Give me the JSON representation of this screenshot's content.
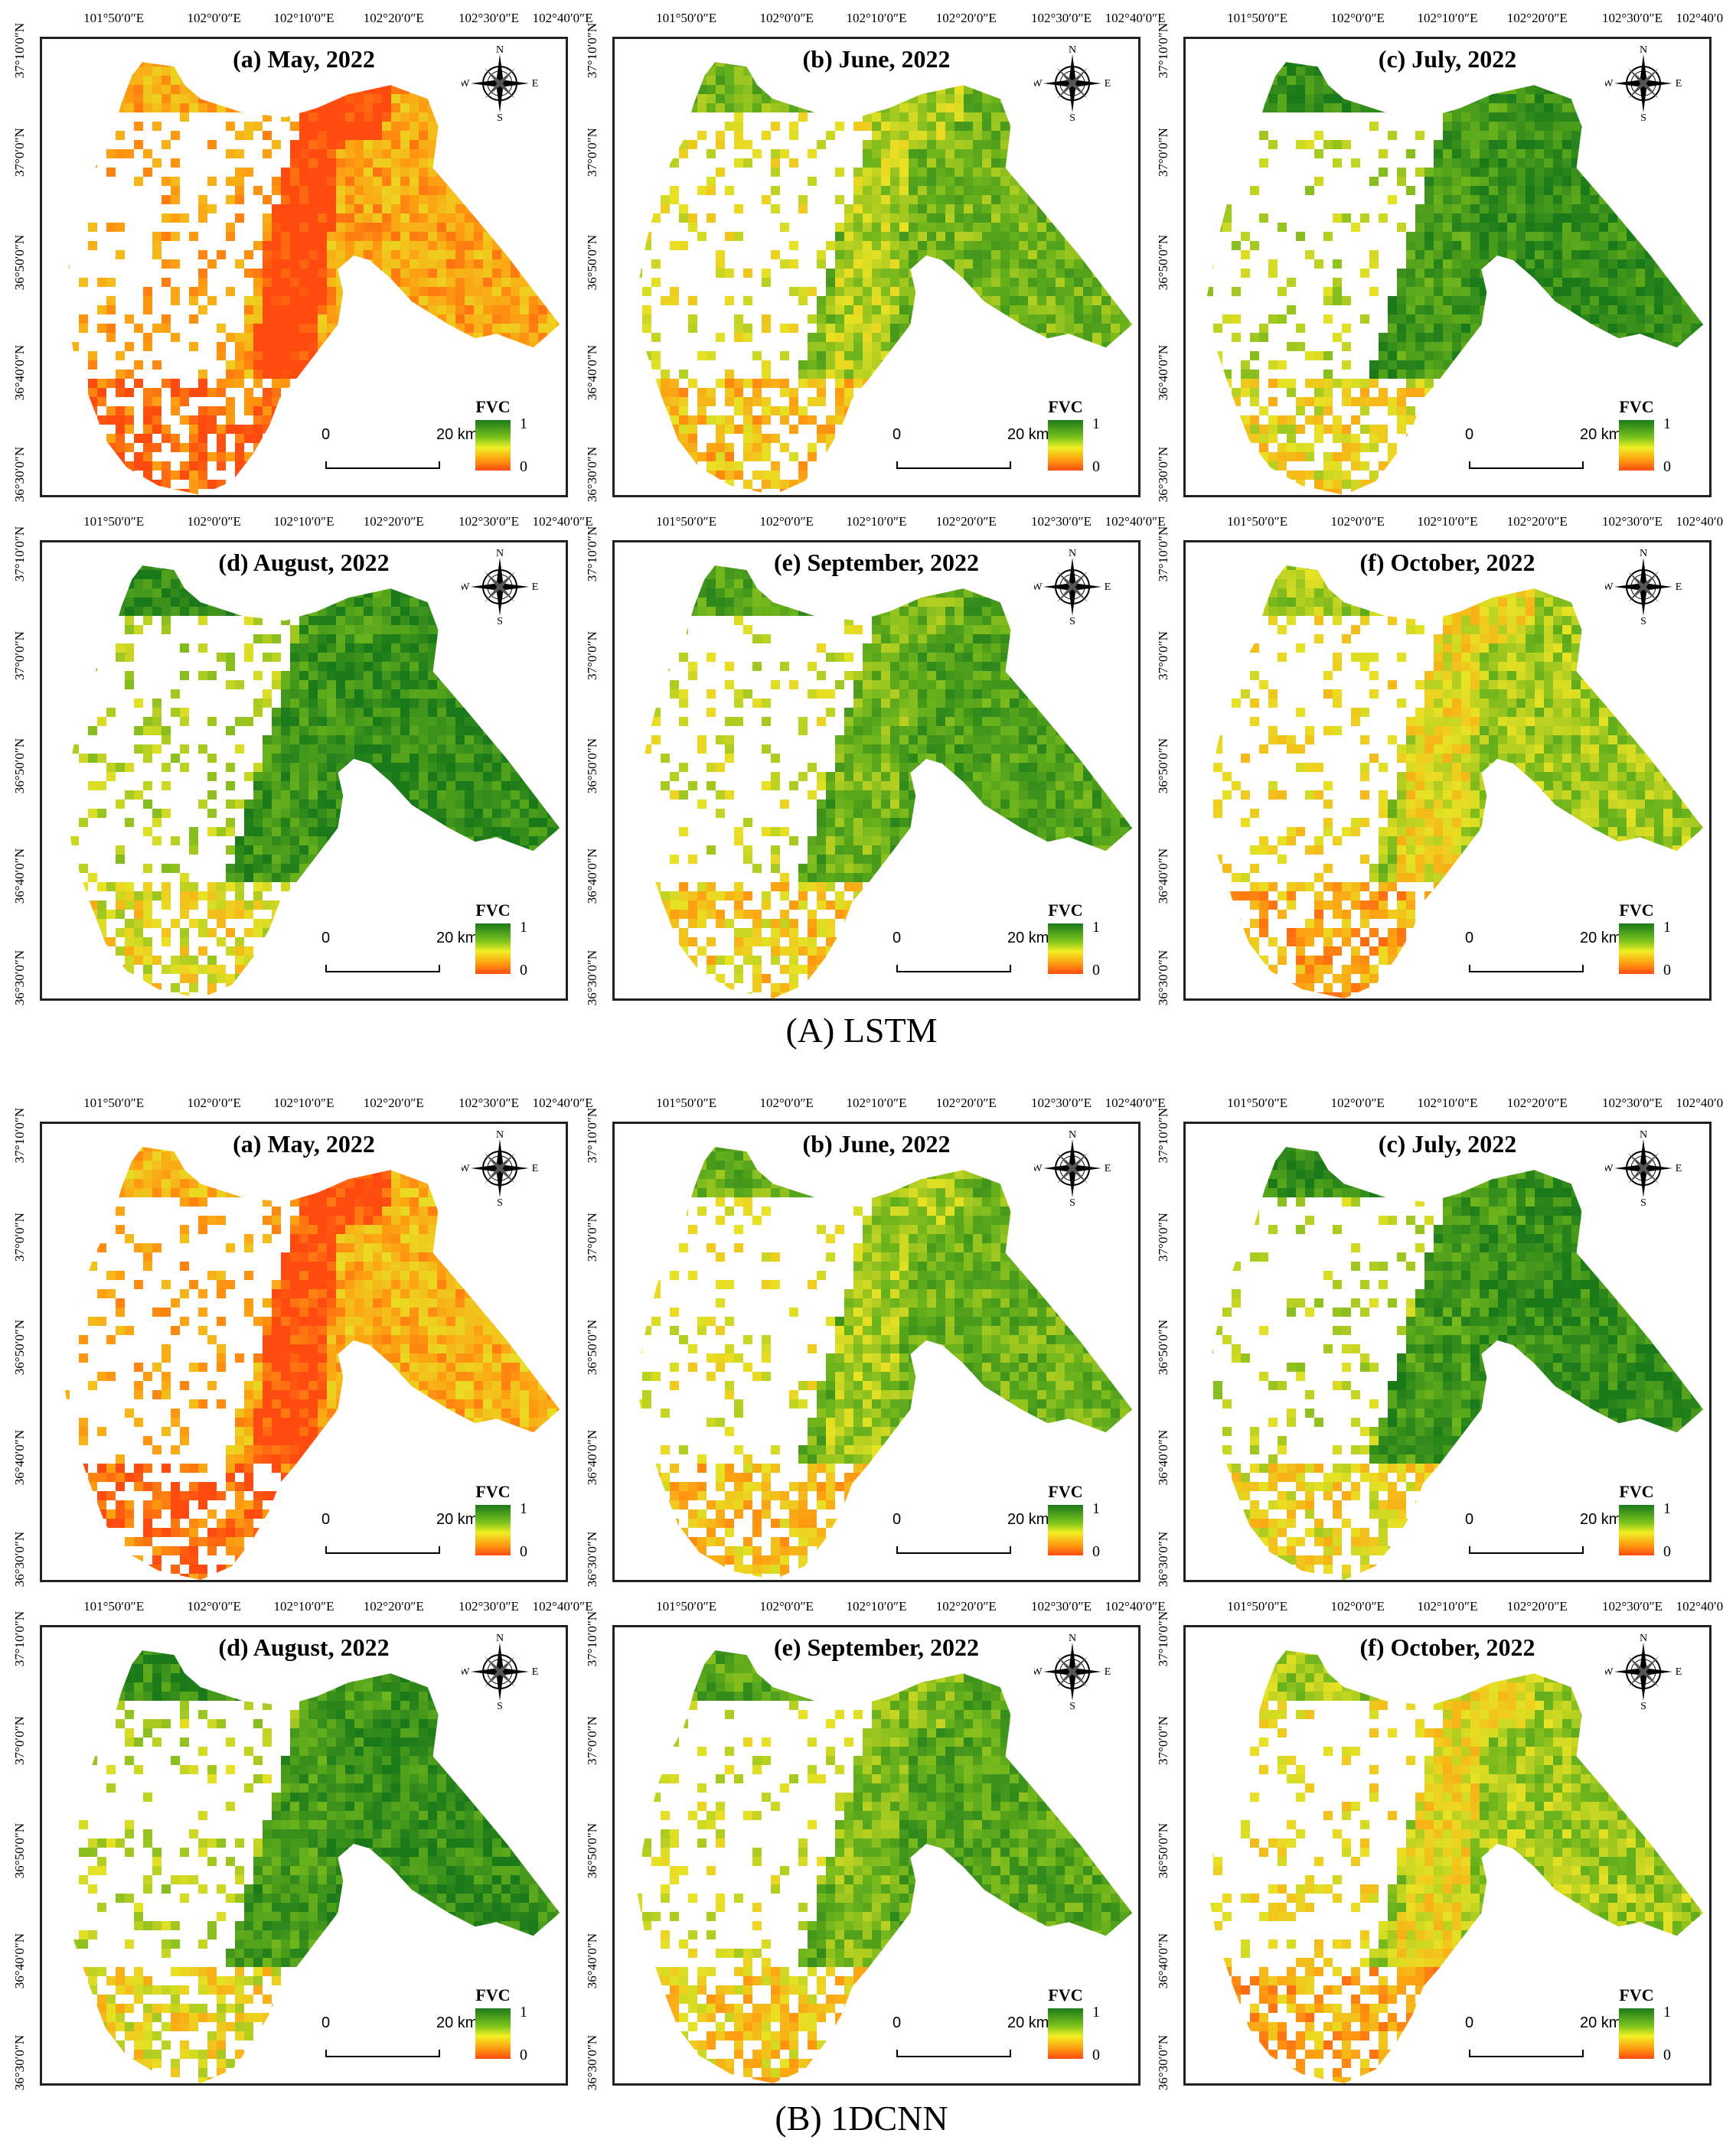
{
  "colors": {
    "dense": "#1a7a1a",
    "mid_green": "#6cb41c",
    "yellow": "#e8e224",
    "orange": "#ff9a10",
    "red": "#ff4a10",
    "bare": "#ffffff"
  },
  "longitude_labels": [
    "101°50′0″E",
    "102°0′0″E",
    "102°10′0″E",
    "102°20′0″E",
    "102°30′0″E",
    "102°40′0″E"
  ],
  "latitude_labels": [
    "37°10′0″N",
    "37°0′0″N",
    "36°50′0″N",
    "36°40′0″N",
    "36°30′0″N"
  ],
  "compass": {
    "n": "N",
    "s": "S",
    "e": "E",
    "w": "W"
  },
  "legend": {
    "title": "FVC",
    "high": "1",
    "low": "0"
  },
  "scale": {
    "zero": "0",
    "dist": "20 km"
  },
  "sections": [
    {
      "caption": "(A) LSTM",
      "panels": [
        {
          "title": "(a) May, 2022",
          "greenness": 0.25
        },
        {
          "title": "(b) June, 2022",
          "greenness": 0.7
        },
        {
          "title": "(c) July, 2022",
          "greenness": 0.9
        },
        {
          "title": "(d) August, 2022",
          "greenness": 0.92
        },
        {
          "title": "(e) September, 2022",
          "greenness": 0.8
        },
        {
          "title": "(f) October, 2022",
          "greenness": 0.6
        }
      ]
    },
    {
      "caption": "(B) 1DCNN",
      "panels": [
        {
          "title": "(a) May, 2022",
          "greenness": 0.28
        },
        {
          "title": "(b) June, 2022",
          "greenness": 0.72
        },
        {
          "title": "(c) July, 2022",
          "greenness": 0.9
        },
        {
          "title": "(d) August, 2022",
          "greenness": 0.9
        },
        {
          "title": "(e) September, 2022",
          "greenness": 0.78
        },
        {
          "title": "(f) October, 2022",
          "greenness": 0.6
        }
      ]
    }
  ]
}
